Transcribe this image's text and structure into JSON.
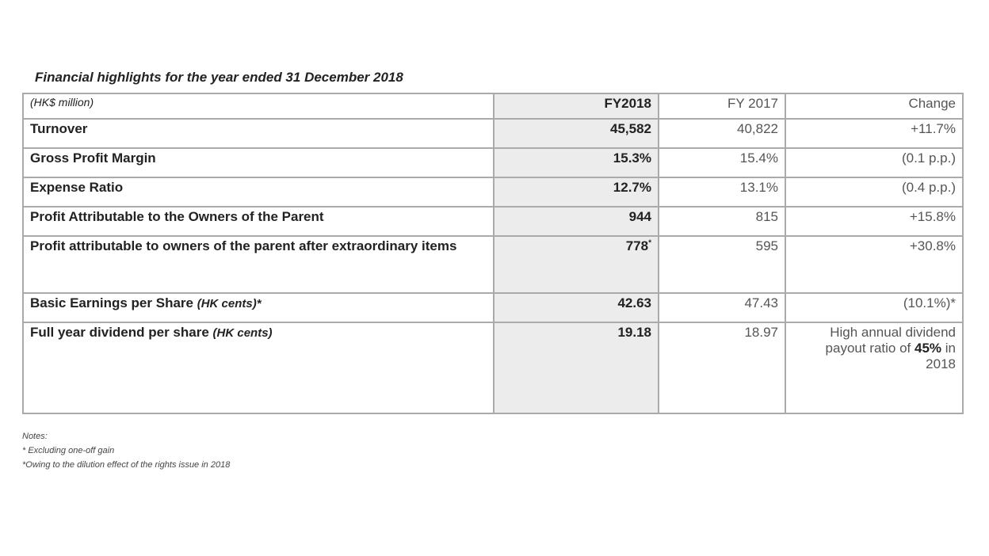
{
  "title": "Financial highlights for the year ended 31 December 2018",
  "columns": {
    "unit": "(HK$ million)",
    "fy2018": "FY2018",
    "fy2017": "FY 2017",
    "change": "Change"
  },
  "rows": [
    {
      "label": "Turnover",
      "fy2018": "45,582",
      "fy2017": "40,822",
      "change": "+11.7%"
    },
    {
      "label": "Gross Profit Margin",
      "fy2018": "15.3%",
      "fy2017": "15.4%",
      "change": "(0.1 p.p.)"
    },
    {
      "label": "Expense Ratio",
      "fy2018": "12.7%",
      "fy2017": "13.1%",
      "change": "(0.4 p.p.)"
    },
    {
      "label": "Profit Attributable to the Owners of the Parent",
      "fy2018": "944",
      "fy2017": "815",
      "change": "+15.8%"
    },
    {
      "label": "Profit attributable to owners of the parent after extraordinary items",
      "fy2018": "778",
      "fy2018_mark": "*",
      "fy2017": "595",
      "change": "+30.8%"
    },
    {
      "label": "Basic Earnings per Share",
      "label_note": "(HK cents)*",
      "fy2018": "42.63",
      "fy2017": "47.43",
      "change": "(10.1%)*"
    },
    {
      "label": "Full year dividend per share",
      "label_note": "(HK cents)",
      "fy2018": "19.18",
      "fy2017": "18.97",
      "change_pre": "High annual dividend payout ratio of ",
      "change_bold": "45%",
      "change_post": " in 2018"
    }
  ],
  "notes": {
    "heading": "Notes:",
    "items": [
      "* Excluding one-off gain",
      "*Owing to the dilution effect of the rights issue in 2018"
    ]
  }
}
